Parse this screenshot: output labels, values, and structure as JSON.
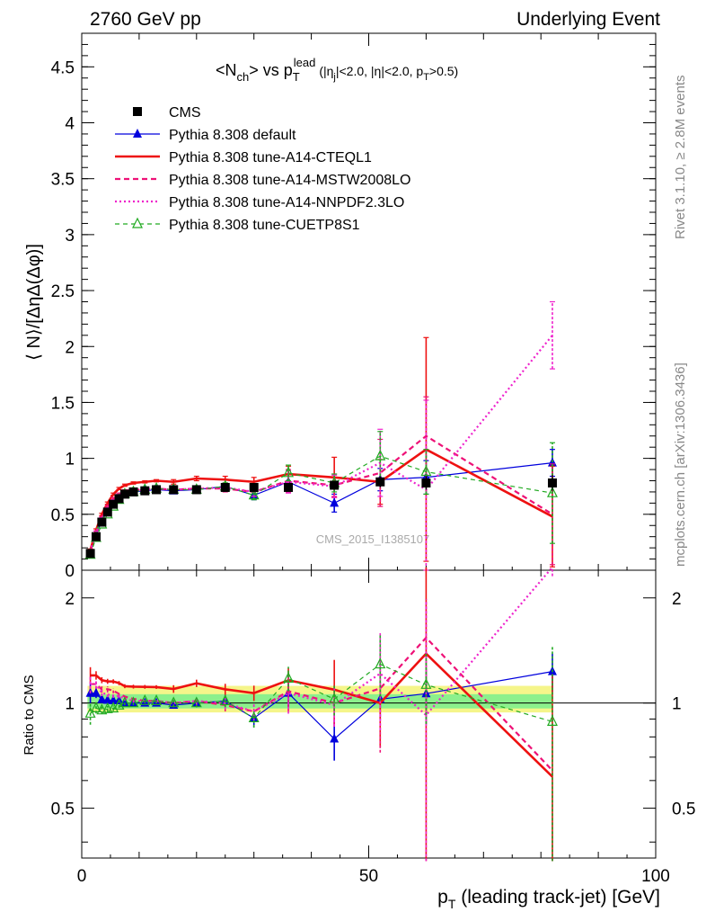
{
  "header": {
    "left": "2760 GeV pp",
    "right": "Underlying Event"
  },
  "side_labels": {
    "rivet": "Rivet 3.1.10, ≥ 2.8M events",
    "mcplots": "mcplots.cern.ch [arXiv:1306.3436]"
  },
  "title": {
    "lhs": "<N",
    "lhs_sub": "ch",
    "middle": "> vs p",
    "pt_sup": "lead",
    "pt_sub": "T",
    "cuts": "(|η",
    "cuts_sub": "j",
    "cuts_rest": "|<2.0, |η|<2.0, p",
    "cuts_sub2": "T",
    "cuts_end": ">0.5)"
  },
  "watermark": "CMS_2015_I1385107",
  "axes": {
    "ylabel_top": "⟨ N⟩/[ΔηΔ(Δφ)]",
    "ylabel_bottom": "Ratio to CMS",
    "xlabel_main": "p",
    "xlabel_sub": "T",
    "xlabel_rest": " (leading track-jet) [GeV]",
    "top_ticks": [
      "0",
      "0.5",
      "1",
      "1.5",
      "2",
      "2.5",
      "3",
      "3.5",
      "4",
      "4.5"
    ],
    "bottom_ticks": [
      "0.5",
      "1",
      "2"
    ],
    "x_ticks": [
      "0",
      "50",
      "100"
    ]
  },
  "legend": [
    {
      "label": "CMS",
      "color": "#000000",
      "style": "data"
    },
    {
      "label": "Pythia 8.308 default",
      "color": "#0000dd",
      "style": "solid-triangle"
    },
    {
      "label": "Pythia 8.308 tune-A14-CTEQL1",
      "color": "#ee1111",
      "style": "thick-solid"
    },
    {
      "label": "Pythia 8.308 tune-A14-MSTW2008LO",
      "color": "#ee1177",
      "style": "dashed"
    },
    {
      "label": "Pythia 8.308 tune-A14-NNPDF2.3LO",
      "color": "#ee22cc",
      "style": "dotted"
    },
    {
      "label": "Pythia 8.308 tune-CUETP8S1",
      "color": "#22aa22",
      "style": "dashed-open-triangle"
    }
  ],
  "chart_data": {
    "type": "line",
    "xlabel": "p_T (leading track-jet) [GeV]",
    "ylabel": "⟨ N⟩/[ΔηΔ(Δφ)]",
    "xlim": [
      0,
      100
    ],
    "ylim": [
      0,
      4.8
    ],
    "ratio_ylim": [
      0.36,
      2.4
    ],
    "ratio_scale": "log",
    "x": [
      1.5,
      2.5,
      3.5,
      4.5,
      5.5,
      6.5,
      7.5,
      9,
      11,
      13,
      16,
      20,
      25,
      30,
      36,
      44,
      52,
      60,
      82
    ],
    "cms": {
      "values": [
        0.15,
        0.3,
        0.43,
        0.52,
        0.59,
        0.64,
        0.68,
        0.7,
        0.71,
        0.72,
        0.72,
        0.72,
        0.74,
        0.74,
        0.74,
        0.76,
        0.79,
        0.78,
        0.78
      ],
      "errors": [
        0.01,
        0.01,
        0.01,
        0.01,
        0.01,
        0.01,
        0.01,
        0.01,
        0.01,
        0.01,
        0.01,
        0.01,
        0.02,
        0.02,
        0.03,
        0.03,
        0.05,
        0.06,
        0.07
      ]
    },
    "series": [
      {
        "name": "Pythia 8.308 default",
        "color": "#0000dd",
        "dash": "",
        "width": 1.2,
        "marker": "filled-triangle",
        "values": [
          0.16,
          0.32,
          0.44,
          0.53,
          0.6,
          0.65,
          0.68,
          0.7,
          0.71,
          0.72,
          0.71,
          0.72,
          0.75,
          0.67,
          0.79,
          0.6,
          0.81,
          0.83,
          0.96
        ],
        "errors": [
          0.01,
          0.01,
          0.01,
          0.01,
          0.01,
          0.01,
          0.01,
          0.01,
          0.01,
          0.01,
          0.01,
          0.02,
          0.03,
          0.04,
          0.07,
          0.08,
          0.1,
          0.15,
          0.12
        ]
      },
      {
        "name": "Pythia 8.308 tune-A14-CTEQL1",
        "color": "#ee1111",
        "dash": "",
        "width": 2.6,
        "marker": "none",
        "values": [
          0.18,
          0.36,
          0.5,
          0.6,
          0.68,
          0.73,
          0.76,
          0.78,
          0.79,
          0.8,
          0.79,
          0.82,
          0.81,
          0.79,
          0.86,
          0.83,
          0.79,
          1.08,
          0.48
        ],
        "errors": [
          0.01,
          0.01,
          0.01,
          0.01,
          0.01,
          0.01,
          0.01,
          0.01,
          0.01,
          0.01,
          0.02,
          0.02,
          0.03,
          0.04,
          0.07,
          0.18,
          0.2,
          1.0,
          0.45
        ]
      },
      {
        "name": "Pythia 8.308 tune-A14-MSTW2008LO",
        "color": "#ee1177",
        "dash": "6,4",
        "width": 2.2,
        "marker": "none",
        "values": [
          0.17,
          0.34,
          0.47,
          0.57,
          0.64,
          0.68,
          0.71,
          0.72,
          0.72,
          0.73,
          0.72,
          0.73,
          0.73,
          0.7,
          0.8,
          0.76,
          0.87,
          1.2,
          0.5
        ],
        "errors": [
          0.01,
          0.01,
          0.01,
          0.01,
          0.01,
          0.01,
          0.01,
          0.01,
          0.01,
          0.01,
          0.02,
          0.02,
          0.03,
          0.04,
          0.1,
          0.1,
          0.3,
          0.35,
          0.45
        ]
      },
      {
        "name": "Pythia 8.308 tune-A14-NNPDF2.3LO",
        "color": "#ee22cc",
        "dash": "2,3",
        "width": 2.2,
        "marker": "none",
        "values": [
          0.17,
          0.34,
          0.46,
          0.55,
          0.62,
          0.67,
          0.7,
          0.71,
          0.72,
          0.73,
          0.72,
          0.73,
          0.74,
          0.7,
          0.79,
          0.75,
          0.96,
          0.72,
          2.1
        ],
        "errors": [
          0.01,
          0.01,
          0.01,
          0.01,
          0.01,
          0.01,
          0.01,
          0.01,
          0.01,
          0.01,
          0.02,
          0.02,
          0.03,
          0.04,
          0.1,
          0.1,
          0.3,
          0.8,
          0.3
        ]
      },
      {
        "name": "Pythia 8.308 tune-CUETP8S1",
        "color": "#22aa22",
        "dash": "5,4",
        "width": 1.2,
        "marker": "open-triangle",
        "values": [
          0.14,
          0.29,
          0.41,
          0.5,
          0.57,
          0.63,
          0.68,
          0.7,
          0.72,
          0.73,
          0.72,
          0.72,
          0.75,
          0.67,
          0.87,
          0.78,
          1.02,
          0.88,
          0.69
        ],
        "errors": [
          0.01,
          0.01,
          0.01,
          0.01,
          0.01,
          0.01,
          0.01,
          0.01,
          0.01,
          0.01,
          0.02,
          0.02,
          0.03,
          0.04,
          0.07,
          0.08,
          0.22,
          0.2,
          0.45
        ]
      }
    ]
  }
}
